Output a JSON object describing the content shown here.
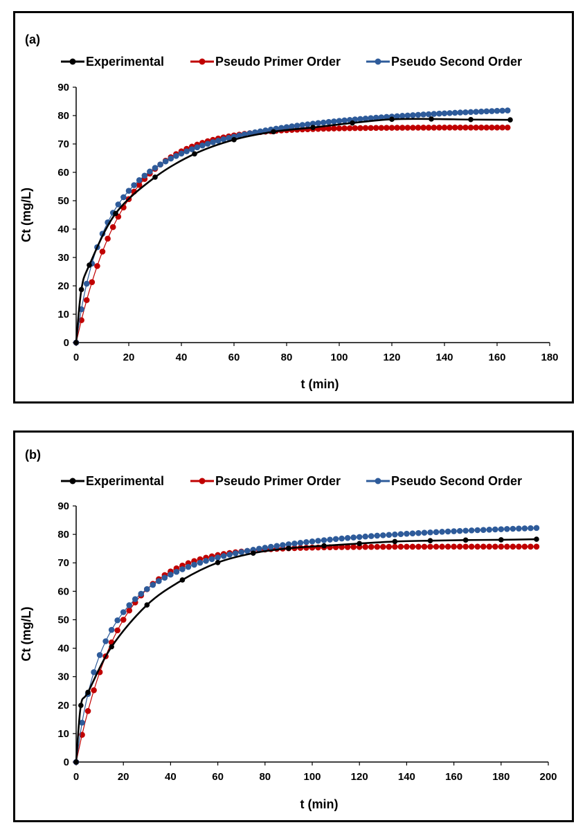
{
  "chart_data": [
    {
      "type": "line",
      "panel_label": "(a)",
      "xlabel": "t (min)",
      "ylabel": "Ct (mg/L)",
      "xlim": [
        0,
        180
      ],
      "ylim": [
        0,
        90
      ],
      "xticks": [
        0,
        20,
        40,
        60,
        80,
        100,
        120,
        140,
        160,
        180
      ],
      "yticks": [
        0,
        10,
        20,
        30,
        40,
        50,
        60,
        70,
        80,
        90
      ],
      "legend_position": "top",
      "series": [
        {
          "name": "Experimental",
          "color": "#000000",
          "model": "data",
          "markers_every": 1,
          "x": [
            0,
            2,
            5,
            15,
            30,
            45,
            60,
            75,
            90,
            105,
            120,
            135,
            150,
            165
          ],
          "y": [
            0,
            18.7,
            27.3,
            45.5,
            58.3,
            66.5,
            71.5,
            74.3,
            75.8,
            77.4,
            78.7,
            78.8,
            78.6,
            78.5
          ]
        },
        {
          "name": "Pseudo Primer Order",
          "color": "#c00000",
          "model": "pfo",
          "qe": 75.8,
          "k": 0.055,
          "step": 2,
          "xmax": 165
        },
        {
          "name": "Pseudo Second Order",
          "color": "#2e5b9a",
          "model": "pso",
          "qe": 88.3,
          "k": 0.00087,
          "step": 2,
          "xmax": 165
        }
      ]
    },
    {
      "type": "line",
      "panel_label": "(b)",
      "xlabel": "t (min)",
      "ylabel": "Ct (mg/L)",
      "xlim": [
        0,
        200
      ],
      "ylim": [
        0,
        90
      ],
      "xticks": [
        0,
        20,
        40,
        60,
        80,
        100,
        120,
        140,
        160,
        180,
        200
      ],
      "yticks": [
        0,
        10,
        20,
        30,
        40,
        50,
        60,
        70,
        80,
        90
      ],
      "legend_position": "top",
      "series": [
        {
          "name": "Experimental",
          "color": "#000000",
          "model": "data",
          "markers_every": 1,
          "x": [
            0,
            2,
            5,
            15,
            30,
            45,
            60,
            75,
            90,
            105,
            120,
            135,
            150,
            165,
            180,
            195
          ],
          "y": [
            0,
            19.9,
            24.5,
            40.5,
            55.2,
            64.0,
            70.1,
            73.4,
            75.1,
            76.0,
            76.8,
            77.5,
            77.8,
            78.0,
            78.1,
            78.3
          ]
        },
        {
          "name": "Pseudo Primer Order",
          "color": "#c00000",
          "model": "pfo",
          "qe": 75.7,
          "k": 0.054,
          "step": 2.5,
          "xmax": 195
        },
        {
          "name": "Pseudo Second Order",
          "color": "#2e5b9a",
          "model": "pso",
          "qe": 87.9,
          "k": 0.00085,
          "step": 2.5,
          "xmax": 195
        }
      ]
    }
  ]
}
